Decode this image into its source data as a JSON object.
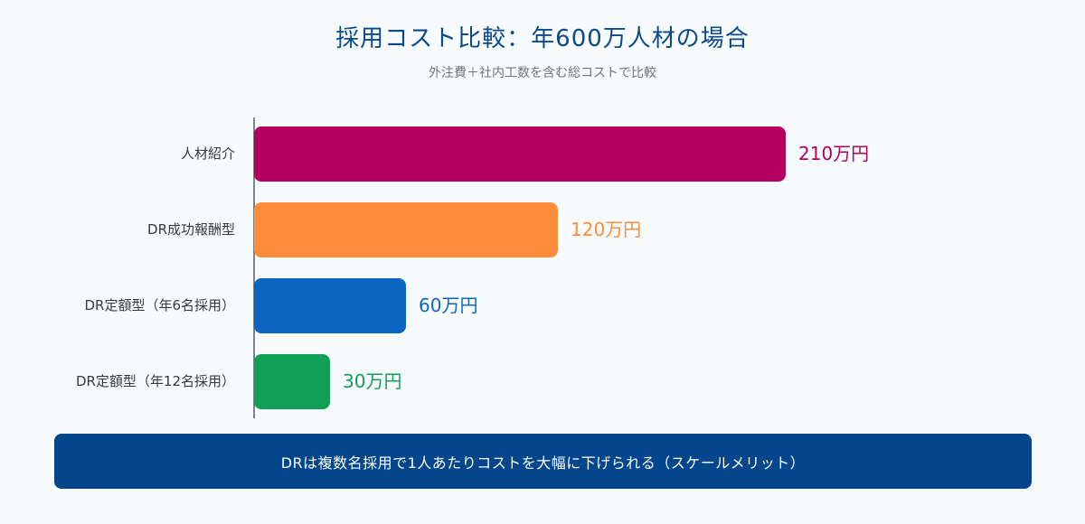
{
  "header": {
    "title": "採用コスト比較：年600万人材の場合",
    "subtitle": "外注費＋社内工数を含む総コストで比較"
  },
  "chart_data": {
    "type": "bar",
    "orientation": "horizontal",
    "categories": [
      "人材紹介",
      "DR成功報酬型",
      "DR定額型（年6名採用）",
      "DR定額型（年12名採用）"
    ],
    "values": [
      210,
      120,
      60,
      30
    ],
    "value_labels": [
      "210万円",
      "120万円",
      "60万円",
      "30万円"
    ],
    "colors": [
      "#b5005f",
      "#ff8c3d",
      "#0b66c3",
      "#10a055"
    ],
    "xlim": [
      0,
      210
    ],
    "grid": false,
    "legend": "none"
  },
  "footer": {
    "banner_text": "DRは複数名採用で1人あたりコストを大幅に下げられる（スケールメリット）"
  }
}
